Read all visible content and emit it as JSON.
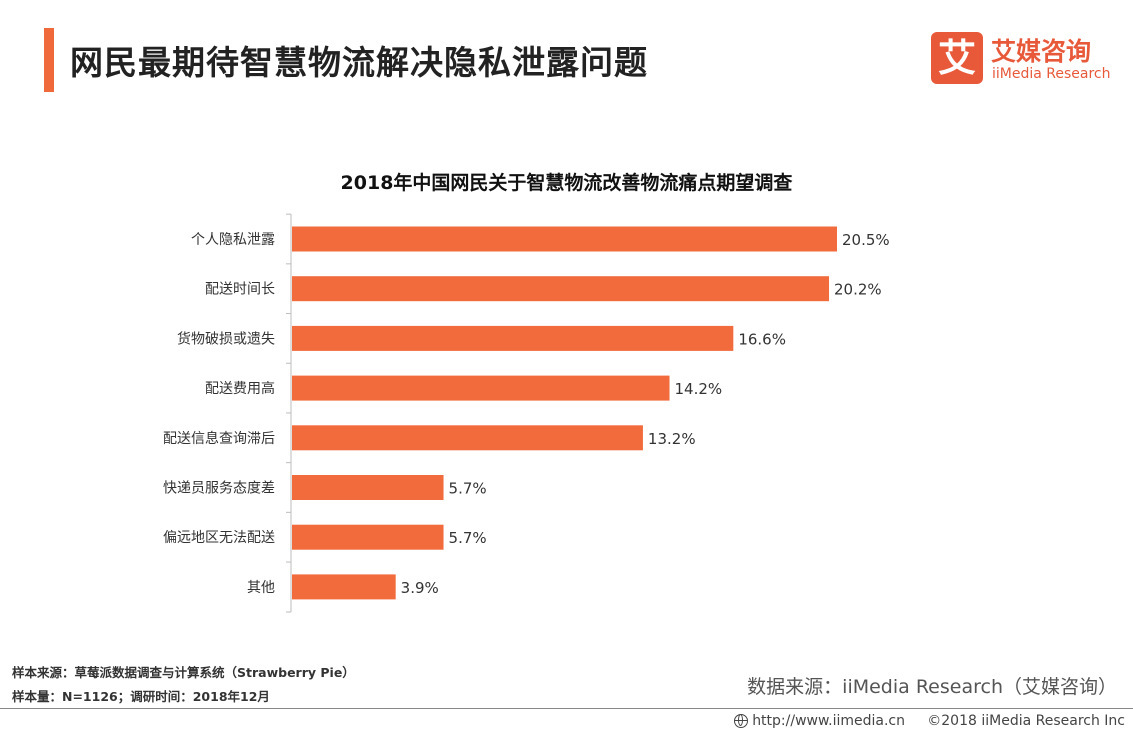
{
  "header": {
    "title": "网民最期待智慧物流解决隐私泄露问题",
    "accent_color": "#F0693A"
  },
  "logo": {
    "mark": "艾",
    "cn": "艾媒咨询",
    "en": "iiMedia Research",
    "color": "#E8593A"
  },
  "chart_data": {
    "type": "bar",
    "orientation": "horizontal",
    "title": "2018年中国网民关于智慧物流改善物流痛点期望调查",
    "categories": [
      "个人隐私泄露",
      "配送时间长",
      "货物破损或遗失",
      "配送费用高",
      "配送信息查询滞后",
      "快递员服务态度差",
      "偏远地区无法配送",
      "其他"
    ],
    "values": [
      20.5,
      20.2,
      16.6,
      14.2,
      13.2,
      5.7,
      5.7,
      3.9
    ],
    "value_labels": [
      "20.5%",
      "20.2%",
      "16.6%",
      "14.2%",
      "13.2%",
      "5.7%",
      "5.7%",
      "3.9%"
    ],
    "unit": "%",
    "bar_color": "#F26B3D",
    "grid": false,
    "legend": "none"
  },
  "footer": {
    "sample_source": "样本来源：草莓派数据调查与计算系统（Strawberry Pie）",
    "sample_size": "样本量：N=1126；调研时间：2018年12月",
    "data_source": "数据来源：iiMedia Research（艾媒咨询）",
    "website": "http://www.iimedia.cn",
    "copyright": "©2018  iiMedia Research  Inc"
  }
}
